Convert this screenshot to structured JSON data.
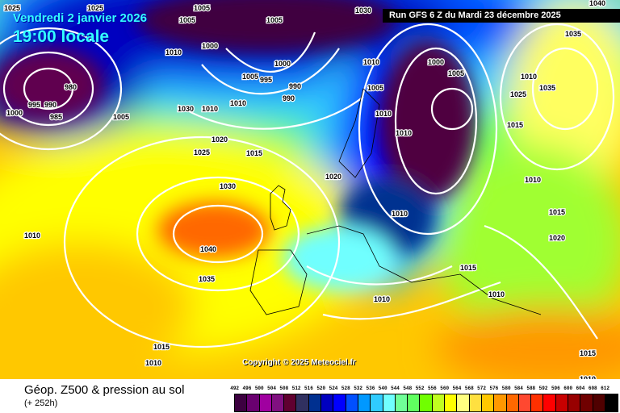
{
  "header": {
    "date": "Vendredi 2 janvier 2026",
    "time": "19:00 locale",
    "run": "Run GFS 6 Z du Mardi 23 décembre 2025"
  },
  "copyright": "Copyright © 2025 Meteociel.fr",
  "footer": {
    "title": "Géop. Z500 & pression au sol",
    "lead": "(+ 252h)"
  },
  "legend": {
    "labels": [
      "492",
      "496",
      "500",
      "504",
      "508",
      "512",
      "516",
      "520",
      "524",
      "528",
      "532",
      "536",
      "540",
      "544",
      "548",
      "552",
      "556",
      "560",
      "564",
      "568",
      "572",
      "576",
      "580",
      "584",
      "588",
      "592",
      "596",
      "600",
      "604",
      "608",
      "612"
    ],
    "colors": [
      "#3c0040",
      "#6a0070",
      "#a000a0",
      "#801080",
      "#600030",
      "#303060",
      "#003090",
      "#0000c0",
      "#0000ff",
      "#0050ff",
      "#0098ff",
      "#30ccff",
      "#70ffff",
      "#70ff98",
      "#60ff60",
      "#70ff00",
      "#c0ff20",
      "#ffff00",
      "#ffff80",
      "#ffe040",
      "#ffc800",
      "#ff9800",
      "#ff6800",
      "#ff4830",
      "#ff3000",
      "#ff0000",
      "#c80000",
      "#980000",
      "#700000",
      "#500000",
      "#000000"
    ]
  },
  "pressure_labels": [
    "1025",
    "1025",
    "1005",
    "1005",
    "1005",
    "1030",
    "1040",
    "1010",
    "1000",
    "1005",
    "1010",
    "1035",
    "995",
    "990",
    "980",
    "985",
    "1000",
    "1005",
    "1030",
    "1010",
    "1010",
    "1000",
    "995",
    "990",
    "990",
    "1010",
    "1020",
    "1025",
    "1015",
    "1020",
    "1030",
    "1040",
    "1035",
    "1010",
    "1015",
    "1010",
    "1010",
    "1015",
    "1020",
    "1015",
    "1010",
    "1015",
    "1015",
    "1010",
    "1010",
    "1005",
    "1000",
    "1005",
    "1010",
    "1010",
    "1025",
    "1035",
    "1010"
  ]
}
